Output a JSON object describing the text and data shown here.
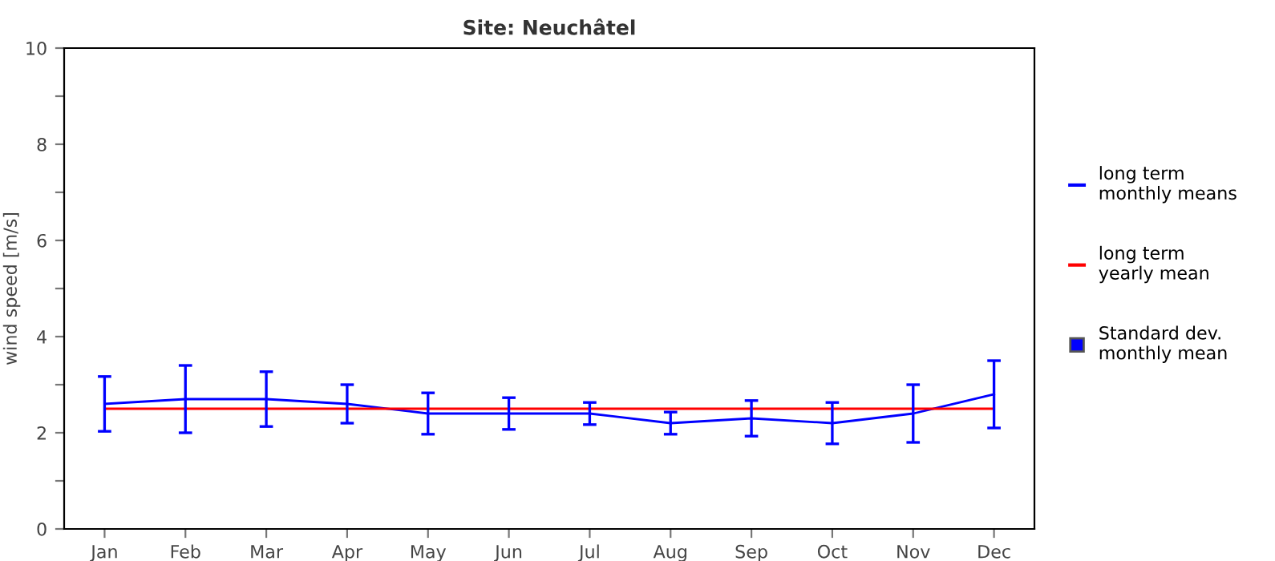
{
  "chart_data": {
    "type": "line",
    "title": "Site: Neuchâtel",
    "ylabel": "wind speed [m/s]",
    "categories": [
      "Jan",
      "Feb",
      "Mar",
      "Apr",
      "May",
      "Jun",
      "Jul",
      "Aug",
      "Sep",
      "Oct",
      "Nov",
      "Dec"
    ],
    "series": [
      {
        "name": "long term\nmonthly means",
        "color": "#0000ff",
        "values": [
          2.6,
          2.7,
          2.7,
          2.6,
          2.4,
          2.4,
          2.4,
          2.2,
          2.3,
          2.2,
          2.4,
          2.8
        ],
        "errors": [
          0.57,
          0.7,
          0.57,
          0.4,
          0.43,
          0.33,
          0.23,
          0.23,
          0.37,
          0.43,
          0.6,
          0.7
        ]
      },
      {
        "name": "long term\nyearly mean",
        "color": "#ff0000",
        "values": [
          2.5,
          2.5,
          2.5,
          2.5,
          2.5,
          2.5,
          2.5,
          2.5,
          2.5,
          2.5,
          2.5,
          2.5
        ]
      }
    ],
    "annotations": [
      "Standard dev.\nmonthly mean"
    ],
    "ylim": [
      0,
      10
    ],
    "yticks": [
      0,
      {
        "value": 1,
        "label": null
      },
      2,
      {
        "value": 3,
        "label": null
      },
      4,
      {
        "value": 5,
        "label": null
      },
      6,
      {
        "value": 7,
        "label": null
      },
      8,
      {
        "value": 9,
        "label": null
      },
      10
    ],
    "legend": "right",
    "grid": false,
    "marker": "none"
  }
}
